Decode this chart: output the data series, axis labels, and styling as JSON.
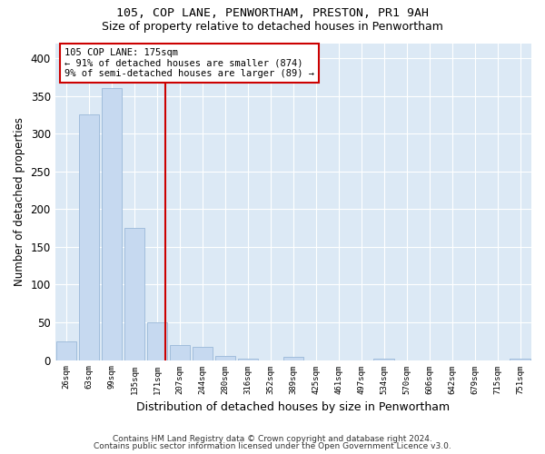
{
  "title1": "105, COP LANE, PENWORTHAM, PRESTON, PR1 9AH",
  "title2": "Size of property relative to detached houses in Penwortham",
  "xlabel": "Distribution of detached houses by size in Penwortham",
  "ylabel": "Number of detached properties",
  "footer1": "Contains HM Land Registry data © Crown copyright and database right 2024.",
  "footer2": "Contains public sector information licensed under the Open Government Licence v3.0.",
  "annotation_line1": "105 COP LANE: 175sqm",
  "annotation_line2": "← 91% of detached houses are smaller (874)",
  "annotation_line3": "9% of semi-detached houses are larger (89) →",
  "bar_color": "#c6d9f0",
  "bar_edge_color": "#9ab8d8",
  "vline_color": "#cc0000",
  "background_color": "#dce9f5",
  "grid_color": "#ffffff",
  "bin_labels": [
    "26sqm",
    "63sqm",
    "99sqm",
    "135sqm",
    "171sqm",
    "207sqm",
    "244sqm",
    "280sqm",
    "316sqm",
    "352sqm",
    "389sqm",
    "425sqm",
    "461sqm",
    "497sqm",
    "534sqm",
    "570sqm",
    "606sqm",
    "642sqm",
    "679sqm",
    "715sqm",
    "751sqm"
  ],
  "bar_heights": [
    25,
    325,
    360,
    175,
    50,
    20,
    18,
    5,
    2,
    0,
    4,
    0,
    0,
    0,
    2,
    0,
    0,
    0,
    0,
    0,
    2
  ],
  "vline_position": 4.35,
  "ylim": [
    0,
    420
  ],
  "yticks": [
    0,
    50,
    100,
    150,
    200,
    250,
    300,
    350,
    400
  ]
}
